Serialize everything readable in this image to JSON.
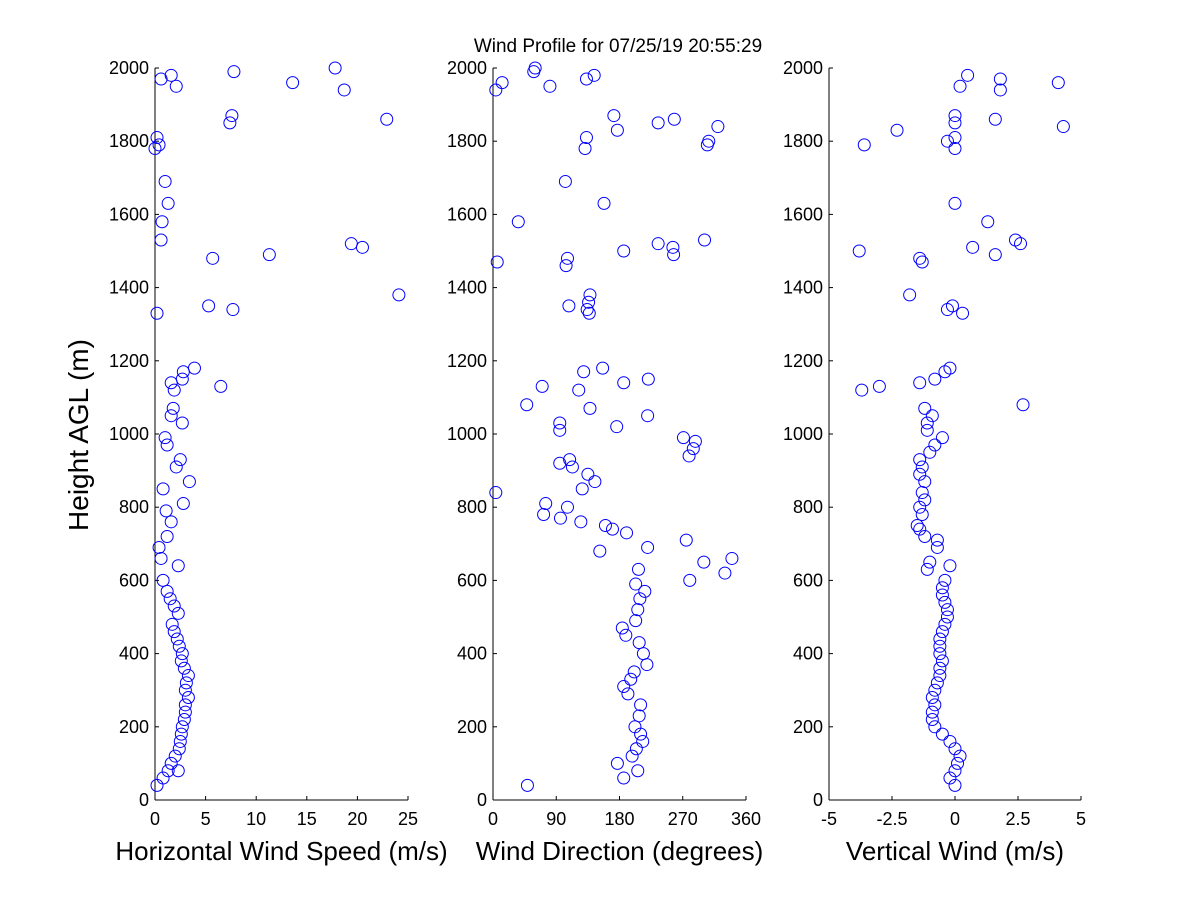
{
  "figure": {
    "title": "Wind Profile for  07/25/19 20:55:29",
    "ylabel": "Height AGL (m)",
    "marker_color": "#0000ff"
  },
  "chart_data": [
    {
      "type": "scatter",
      "xlabel": "Horizontal Wind Speed (m/s)",
      "ylabel": "Height AGL (m)",
      "xlim": [
        0,
        25
      ],
      "ylim": [
        0,
        2000
      ],
      "xticks": [
        0,
        5,
        10,
        15,
        20,
        25
      ],
      "xtick_labels": [
        "0",
        "5",
        "10",
        "15",
        "20",
        "25"
      ],
      "yticks": [
        0,
        200,
        400,
        600,
        800,
        1000,
        1200,
        1400,
        1600,
        1800,
        2000
      ],
      "ytick_labels": [
        "0",
        "200",
        "400",
        "600",
        "800",
        "1000",
        "1200",
        "1400",
        "1600",
        "1800",
        "2000"
      ],
      "marker": "circle-open",
      "points": [
        {
          "x": 0.2,
          "y": 40
        },
        {
          "x": 0.8,
          "y": 60
        },
        {
          "x": 1.3,
          "y": 80
        },
        {
          "x": 2.3,
          "y": 80
        },
        {
          "x": 1.6,
          "y": 100
        },
        {
          "x": 2.0,
          "y": 120
        },
        {
          "x": 2.4,
          "y": 140
        },
        {
          "x": 2.5,
          "y": 160
        },
        {
          "x": 2.6,
          "y": 180
        },
        {
          "x": 2.7,
          "y": 200
        },
        {
          "x": 2.9,
          "y": 220
        },
        {
          "x": 3.0,
          "y": 240
        },
        {
          "x": 3.0,
          "y": 260
        },
        {
          "x": 3.3,
          "y": 280
        },
        {
          "x": 3.0,
          "y": 300
        },
        {
          "x": 3.1,
          "y": 320
        },
        {
          "x": 3.3,
          "y": 340
        },
        {
          "x": 2.9,
          "y": 360
        },
        {
          "x": 2.6,
          "y": 380
        },
        {
          "x": 2.7,
          "y": 400
        },
        {
          "x": 2.4,
          "y": 420
        },
        {
          "x": 2.2,
          "y": 440
        },
        {
          "x": 1.9,
          "y": 460
        },
        {
          "x": 1.7,
          "y": 480
        },
        {
          "x": 2.3,
          "y": 510
        },
        {
          "x": 1.9,
          "y": 530
        },
        {
          "x": 1.5,
          "y": 550
        },
        {
          "x": 1.2,
          "y": 570
        },
        {
          "x": 0.8,
          "y": 600
        },
        {
          "x": 2.3,
          "y": 640
        },
        {
          "x": 0.6,
          "y": 660
        },
        {
          "x": 0.4,
          "y": 690
        },
        {
          "x": 1.2,
          "y": 720
        },
        {
          "x": 1.6,
          "y": 760
        },
        {
          "x": 1.1,
          "y": 790
        },
        {
          "x": 2.8,
          "y": 810
        },
        {
          "x": 0.8,
          "y": 850
        },
        {
          "x": 3.4,
          "y": 870
        },
        {
          "x": 2.1,
          "y": 910
        },
        {
          "x": 2.5,
          "y": 930
        },
        {
          "x": 1.2,
          "y": 970
        },
        {
          "x": 1.0,
          "y": 990
        },
        {
          "x": 2.7,
          "y": 1030
        },
        {
          "x": 1.6,
          "y": 1050
        },
        {
          "x": 1.8,
          "y": 1070
        },
        {
          "x": 1.9,
          "y": 1120
        },
        {
          "x": 1.6,
          "y": 1140
        },
        {
          "x": 2.7,
          "y": 1150
        },
        {
          "x": 2.8,
          "y": 1170
        },
        {
          "x": 3.9,
          "y": 1180
        },
        {
          "x": 6.5,
          "y": 1130
        },
        {
          "x": 0.2,
          "y": 1330
        },
        {
          "x": 7.7,
          "y": 1340
        },
        {
          "x": 5.3,
          "y": 1350
        },
        {
          "x": 24.1,
          "y": 1380
        },
        {
          "x": 5.7,
          "y": 1480
        },
        {
          "x": 11.3,
          "y": 1490
        },
        {
          "x": 19.4,
          "y": 1520
        },
        {
          "x": 20.5,
          "y": 1510
        },
        {
          "x": 0.6,
          "y": 1530
        },
        {
          "x": 0.7,
          "y": 1580
        },
        {
          "x": 1.3,
          "y": 1630
        },
        {
          "x": 1.0,
          "y": 1690
        },
        {
          "x": 0.0,
          "y": 1780
        },
        {
          "x": 0.4,
          "y": 1790
        },
        {
          "x": 0.2,
          "y": 1810
        },
        {
          "x": 7.4,
          "y": 1850
        },
        {
          "x": 7.6,
          "y": 1870
        },
        {
          "x": 22.9,
          "y": 1860
        },
        {
          "x": 18.7,
          "y": 1940
        },
        {
          "x": 2.1,
          "y": 1950
        },
        {
          "x": 13.6,
          "y": 1960
        },
        {
          "x": 0.6,
          "y": 1970
        },
        {
          "x": 1.6,
          "y": 1980
        },
        {
          "x": 7.8,
          "y": 1990
        },
        {
          "x": 17.8,
          "y": 2000
        }
      ]
    },
    {
      "type": "scatter",
      "xlabel": "Wind Direction (degrees)",
      "xlim": [
        0,
        360
      ],
      "ylim": [
        0,
        2000
      ],
      "xticks": [
        0,
        90,
        180,
        270,
        360
      ],
      "xtick_labels": [
        "0",
        "90",
        "180",
        "270",
        "360"
      ],
      "yticks": [
        0,
        200,
        400,
        600,
        800,
        1000,
        1200,
        1400,
        1600,
        1800,
        2000
      ],
      "ytick_labels": [
        "0",
        "200",
        "400",
        "600",
        "800",
        "1000",
        "1200",
        "1400",
        "1600",
        "1800",
        "2000"
      ],
      "marker": "circle-open",
      "points": [
        {
          "x": 49,
          "y": 40
        },
        {
          "x": 186,
          "y": 60
        },
        {
          "x": 206,
          "y": 80
        },
        {
          "x": 177,
          "y": 100
        },
        {
          "x": 198,
          "y": 120
        },
        {
          "x": 204,
          "y": 140
        },
        {
          "x": 213,
          "y": 160
        },
        {
          "x": 210,
          "y": 180
        },
        {
          "x": 202,
          "y": 200
        },
        {
          "x": 208,
          "y": 230
        },
        {
          "x": 210,
          "y": 260
        },
        {
          "x": 192,
          "y": 290
        },
        {
          "x": 186,
          "y": 310
        },
        {
          "x": 196,
          "y": 330
        },
        {
          "x": 201,
          "y": 350
        },
        {
          "x": 219,
          "y": 370
        },
        {
          "x": 214,
          "y": 400
        },
        {
          "x": 208,
          "y": 430
        },
        {
          "x": 189,
          "y": 450
        },
        {
          "x": 184,
          "y": 470
        },
        {
          "x": 203,
          "y": 490
        },
        {
          "x": 206,
          "y": 520
        },
        {
          "x": 209,
          "y": 550
        },
        {
          "x": 216,
          "y": 570
        },
        {
          "x": 203,
          "y": 590
        },
        {
          "x": 207,
          "y": 630
        },
        {
          "x": 280,
          "y": 600
        },
        {
          "x": 330,
          "y": 620
        },
        {
          "x": 340,
          "y": 660
        },
        {
          "x": 300,
          "y": 650
        },
        {
          "x": 275,
          "y": 710
        },
        {
          "x": 152,
          "y": 680
        },
        {
          "x": 220,
          "y": 690
        },
        {
          "x": 190,
          "y": 730
        },
        {
          "x": 170,
          "y": 740
        },
        {
          "x": 160,
          "y": 750
        },
        {
          "x": 125,
          "y": 760
        },
        {
          "x": 72,
          "y": 780
        },
        {
          "x": 96,
          "y": 770
        },
        {
          "x": 106,
          "y": 800
        },
        {
          "x": 75,
          "y": 810
        },
        {
          "x": 4,
          "y": 840
        },
        {
          "x": 127,
          "y": 850
        },
        {
          "x": 145,
          "y": 870
        },
        {
          "x": 135,
          "y": 890
        },
        {
          "x": 113,
          "y": 910
        },
        {
          "x": 95,
          "y": 920
        },
        {
          "x": 109,
          "y": 930
        },
        {
          "x": 279,
          "y": 940
        },
        {
          "x": 285,
          "y": 960
        },
        {
          "x": 271,
          "y": 990
        },
        {
          "x": 288,
          "y": 980
        },
        {
          "x": 95,
          "y": 1010
        },
        {
          "x": 176,
          "y": 1020
        },
        {
          "x": 48,
          "y": 1080
        },
        {
          "x": 95,
          "y": 1030
        },
        {
          "x": 220,
          "y": 1050
        },
        {
          "x": 138,
          "y": 1070
        },
        {
          "x": 122,
          "y": 1120
        },
        {
          "x": 70,
          "y": 1130
        },
        {
          "x": 186,
          "y": 1140
        },
        {
          "x": 221,
          "y": 1150
        },
        {
          "x": 129,
          "y": 1170
        },
        {
          "x": 156,
          "y": 1180
        },
        {
          "x": 137,
          "y": 1330
        },
        {
          "x": 134,
          "y": 1340
        },
        {
          "x": 108,
          "y": 1350
        },
        {
          "x": 136,
          "y": 1360
        },
        {
          "x": 138,
          "y": 1380
        },
        {
          "x": 104,
          "y": 1460
        },
        {
          "x": 6,
          "y": 1470
        },
        {
          "x": 106,
          "y": 1480
        },
        {
          "x": 186,
          "y": 1500
        },
        {
          "x": 257,
          "y": 1490
        },
        {
          "x": 256,
          "y": 1510
        },
        {
          "x": 235,
          "y": 1520
        },
        {
          "x": 301,
          "y": 1530
        },
        {
          "x": 36,
          "y": 1580
        },
        {
          "x": 158,
          "y": 1630
        },
        {
          "x": 103,
          "y": 1690
        },
        {
          "x": 131,
          "y": 1780
        },
        {
          "x": 133,
          "y": 1810
        },
        {
          "x": 305,
          "y": 1790
        },
        {
          "x": 307,
          "y": 1800
        },
        {
          "x": 177,
          "y": 1830
        },
        {
          "x": 320,
          "y": 1840
        },
        {
          "x": 235,
          "y": 1850
        },
        {
          "x": 258,
          "y": 1860
        },
        {
          "x": 172,
          "y": 1870
        },
        {
          "x": 4,
          "y": 1940
        },
        {
          "x": 81,
          "y": 1950
        },
        {
          "x": 13,
          "y": 1960
        },
        {
          "x": 133,
          "y": 1970
        },
        {
          "x": 144,
          "y": 1980
        },
        {
          "x": 58,
          "y": 1990
        },
        {
          "x": 60,
          "y": 2000
        }
      ]
    },
    {
      "type": "scatter",
      "xlabel": "Vertical Wind (m/s)",
      "xlim": [
        -5,
        5
      ],
      "ylim": [
        0,
        2000
      ],
      "xticks": [
        -5,
        -2.5,
        0,
        2.5,
        5
      ],
      "xtick_labels": [
        "-5",
        "-2.5",
        "0",
        "2.5",
        "5"
      ],
      "yticks": [
        0,
        200,
        400,
        600,
        800,
        1000,
        1200,
        1400,
        1600,
        1800,
        2000
      ],
      "ytick_labels": [
        "0",
        "200",
        "400",
        "600",
        "800",
        "1000",
        "1200",
        "1400",
        "1600",
        "1800",
        "2000"
      ],
      "marker": "circle-open",
      "points": [
        {
          "x": 0.0,
          "y": 40
        },
        {
          "x": -0.2,
          "y": 60
        },
        {
          "x": 0.0,
          "y": 80
        },
        {
          "x": 0.1,
          "y": 100
        },
        {
          "x": 0.2,
          "y": 120
        },
        {
          "x": 0.0,
          "y": 140
        },
        {
          "x": -0.2,
          "y": 160
        },
        {
          "x": -0.5,
          "y": 180
        },
        {
          "x": -0.8,
          "y": 200
        },
        {
          "x": -0.9,
          "y": 220
        },
        {
          "x": -0.9,
          "y": 240
        },
        {
          "x": -0.8,
          "y": 260
        },
        {
          "x": -0.9,
          "y": 280
        },
        {
          "x": -0.8,
          "y": 300
        },
        {
          "x": -0.7,
          "y": 320
        },
        {
          "x": -0.6,
          "y": 340
        },
        {
          "x": -0.6,
          "y": 360
        },
        {
          "x": -0.5,
          "y": 380
        },
        {
          "x": -0.6,
          "y": 400
        },
        {
          "x": -0.6,
          "y": 420
        },
        {
          "x": -0.6,
          "y": 440
        },
        {
          "x": -0.5,
          "y": 460
        },
        {
          "x": -0.4,
          "y": 480
        },
        {
          "x": -0.3,
          "y": 500
        },
        {
          "x": -0.3,
          "y": 520
        },
        {
          "x": -0.4,
          "y": 540
        },
        {
          "x": -0.5,
          "y": 560
        },
        {
          "x": -0.5,
          "y": 580
        },
        {
          "x": -0.4,
          "y": 600
        },
        {
          "x": -0.2,
          "y": 640
        },
        {
          "x": -1.1,
          "y": 630
        },
        {
          "x": -1.0,
          "y": 650
        },
        {
          "x": -0.7,
          "y": 690
        },
        {
          "x": -0.7,
          "y": 710
        },
        {
          "x": -1.2,
          "y": 720
        },
        {
          "x": -1.4,
          "y": 740
        },
        {
          "x": -1.5,
          "y": 750
        },
        {
          "x": -1.3,
          "y": 780
        },
        {
          "x": -1.4,
          "y": 800
        },
        {
          "x": -1.2,
          "y": 820
        },
        {
          "x": -1.3,
          "y": 840
        },
        {
          "x": -1.2,
          "y": 870
        },
        {
          "x": -1.4,
          "y": 890
        },
        {
          "x": -1.3,
          "y": 910
        },
        {
          "x": -1.4,
          "y": 930
        },
        {
          "x": -1.0,
          "y": 950
        },
        {
          "x": -0.8,
          "y": 970
        },
        {
          "x": -0.5,
          "y": 990
        },
        {
          "x": -1.1,
          "y": 1010
        },
        {
          "x": -1.1,
          "y": 1030
        },
        {
          "x": -0.9,
          "y": 1050
        },
        {
          "x": -1.2,
          "y": 1070
        },
        {
          "x": 2.7,
          "y": 1080
        },
        {
          "x": -3.7,
          "y": 1120
        },
        {
          "x": -3.0,
          "y": 1130
        },
        {
          "x": -1.4,
          "y": 1140
        },
        {
          "x": -0.8,
          "y": 1150
        },
        {
          "x": -0.4,
          "y": 1170
        },
        {
          "x": -0.2,
          "y": 1180
        },
        {
          "x": 0.3,
          "y": 1330
        },
        {
          "x": -0.3,
          "y": 1340
        },
        {
          "x": -0.1,
          "y": 1350
        },
        {
          "x": -1.8,
          "y": 1380
        },
        {
          "x": -1.3,
          "y": 1470
        },
        {
          "x": -1.4,
          "y": 1480
        },
        {
          "x": 1.6,
          "y": 1490
        },
        {
          "x": -3.8,
          "y": 1500
        },
        {
          "x": 0.7,
          "y": 1510
        },
        {
          "x": 2.6,
          "y": 1520
        },
        {
          "x": 2.4,
          "y": 1530
        },
        {
          "x": 1.3,
          "y": 1580
        },
        {
          "x": 0.0,
          "y": 1630
        },
        {
          "x": 0.0,
          "y": 1780
        },
        {
          "x": -3.6,
          "y": 1790
        },
        {
          "x": -0.3,
          "y": 1800
        },
        {
          "x": 0.0,
          "y": 1810
        },
        {
          "x": -2.3,
          "y": 1830
        },
        {
          "x": 4.3,
          "y": 1840
        },
        {
          "x": 0.0,
          "y": 1850
        },
        {
          "x": 1.6,
          "y": 1860
        },
        {
          "x": 0.0,
          "y": 1870
        },
        {
          "x": 1.8,
          "y": 1940
        },
        {
          "x": 0.2,
          "y": 1950
        },
        {
          "x": 4.1,
          "y": 1960
        },
        {
          "x": 1.8,
          "y": 1970
        },
        {
          "x": 0.5,
          "y": 1980
        }
      ]
    }
  ]
}
